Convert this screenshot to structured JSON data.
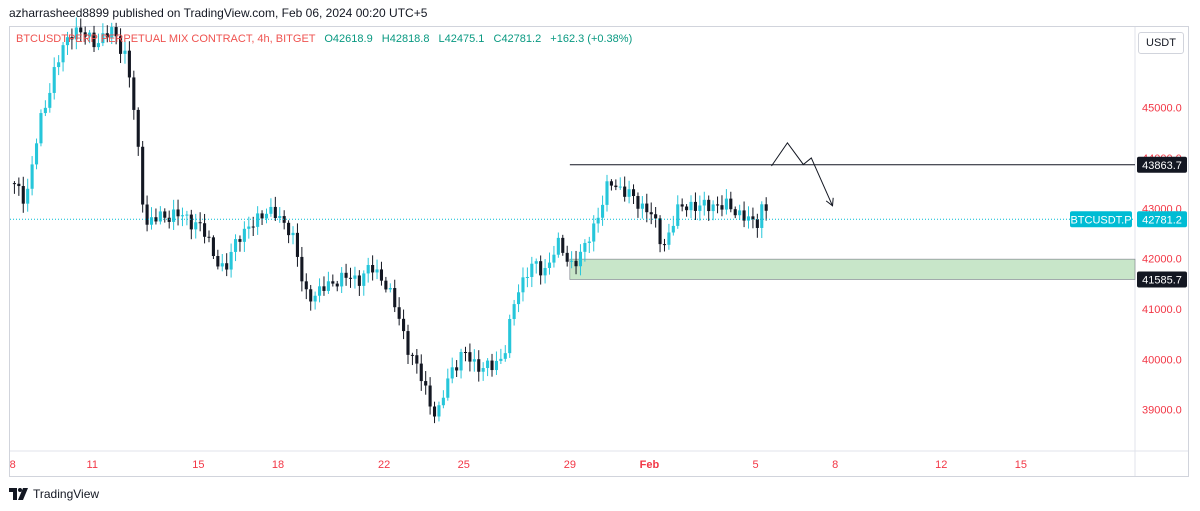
{
  "header": {
    "publisher_line": "azharrasheed8899 published on TradingView.com, Feb 06, 2024 00:20 UTC+5"
  },
  "legend": {
    "symbol": "BTCUSDTPERP PERPETUAL MIX CONTRACT, 4h, BITGET",
    "open": "O42618.9",
    "high": "H42818.8",
    "low": "L42475.1",
    "close": "C42781.2",
    "change": "+162.3 (+0.38%)"
  },
  "currency_label": "USDT",
  "brand": "TradingView",
  "colors": {
    "up": "#26c6da",
    "down": "#131722",
    "zone": "#c8e6c9",
    "price_line": "#00bcd4",
    "axis_text": "#f23645"
  },
  "chart_data": {
    "type": "candlestick",
    "title": "BTCUSDTPERP PERPETUAL MIX CONTRACT, 4h, BITGET",
    "y_ticks": [
      39000,
      40000,
      41000,
      42000,
      43000,
      44000,
      45000
    ],
    "y_tick_labels": [
      "39000.0",
      "40000.0",
      "41000.0",
      "42000.0",
      "43000.0",
      "44000.0",
      "45000.0"
    ],
    "ylim": [
      38200,
      46600
    ],
    "x_labels": [
      {
        "label": "8",
        "day": 8
      },
      {
        "label": "11",
        "day": 11
      },
      {
        "label": "15",
        "day": 15
      },
      {
        "label": "18",
        "day": 18
      },
      {
        "label": "22",
        "day": 22
      },
      {
        "label": "25",
        "day": 25
      },
      {
        "label": "29",
        "day": 29
      },
      {
        "label": "Feb",
        "day": 32
      },
      {
        "label": "5",
        "day": 36
      },
      {
        "label": "8",
        "day": 39
      },
      {
        "label": "12",
        "day": 43
      },
      {
        "label": "15",
        "day": 46
      }
    ],
    "xlim": [
      7.9,
      50.3
    ],
    "last_price": 42781.2,
    "last_price_label": "BTCUSDT.P",
    "last_price_text": "42781.2",
    "resistance": 43863.7,
    "resistance_text": "43863.7",
    "support_zone": [
      41585.7,
      41990
    ],
    "support_text": "41585.7",
    "level_lines_start_day": 29,
    "projection_path": [
      {
        "day": 36.6,
        "price": 43840
      },
      {
        "day": 37.2,
        "price": 44300
      },
      {
        "day": 37.8,
        "price": 43870
      },
      {
        "day": 38.1,
        "price": 44000
      },
      {
        "day": 38.9,
        "price": 43050
      }
    ],
    "key_points": [
      {
        "day": 7.9,
        "price": 43500
      },
      {
        "day": 8.5,
        "price": 43200
      },
      {
        "day": 9.0,
        "price": 44600
      },
      {
        "day": 9.6,
        "price": 45800
      },
      {
        "day": 10.3,
        "price": 46600
      },
      {
        "day": 11.0,
        "price": 46300
      },
      {
        "day": 11.8,
        "price": 46500
      },
      {
        "day": 12.3,
        "price": 46000
      },
      {
        "day": 12.6,
        "price": 44800
      },
      {
        "day": 13.0,
        "price": 42700
      },
      {
        "day": 14.0,
        "price": 42900
      },
      {
        "day": 15.0,
        "price": 42700
      },
      {
        "day": 15.5,
        "price": 42200
      },
      {
        "day": 16.0,
        "price": 41700
      },
      {
        "day": 16.5,
        "price": 42500
      },
      {
        "day": 17.0,
        "price": 42600
      },
      {
        "day": 17.5,
        "price": 43000
      },
      {
        "day": 18.0,
        "price": 42800
      },
      {
        "day": 18.5,
        "price": 42600
      },
      {
        "day": 19.0,
        "price": 41300
      },
      {
        "day": 19.5,
        "price": 41300
      },
      {
        "day": 20.2,
        "price": 41600
      },
      {
        "day": 21.0,
        "price": 41600
      },
      {
        "day": 21.5,
        "price": 41800
      },
      {
        "day": 22.0,
        "price": 41600
      },
      {
        "day": 22.5,
        "price": 40900
      },
      {
        "day": 23.0,
        "price": 40100
      },
      {
        "day": 23.5,
        "price": 39500
      },
      {
        "day": 24.0,
        "price": 38800
      },
      {
        "day": 24.5,
        "price": 39800
      },
      {
        "day": 25.0,
        "price": 40100
      },
      {
        "day": 25.5,
        "price": 39900
      },
      {
        "day": 26.0,
        "price": 39800
      },
      {
        "day": 26.5,
        "price": 40100
      },
      {
        "day": 27.0,
        "price": 41300
      },
      {
        "day": 27.5,
        "price": 41900
      },
      {
        "day": 28.0,
        "price": 41700
      },
      {
        "day": 28.5,
        "price": 42300
      },
      {
        "day": 29.0,
        "price": 41900
      },
      {
        "day": 29.5,
        "price": 42100
      },
      {
        "day": 30.0,
        "price": 42800
      },
      {
        "day": 30.5,
        "price": 43500
      },
      {
        "day": 31.0,
        "price": 43400
      },
      {
        "day": 31.5,
        "price": 43100
      },
      {
        "day": 32.0,
        "price": 43000
      },
      {
        "day": 32.5,
        "price": 42200
      },
      {
        "day": 33.0,
        "price": 42900
      },
      {
        "day": 33.5,
        "price": 43100
      },
      {
        "day": 34.0,
        "price": 43000
      },
      {
        "day": 34.5,
        "price": 43100
      },
      {
        "day": 35.0,
        "price": 43000
      },
      {
        "day": 35.5,
        "price": 42900
      },
      {
        "day": 36.0,
        "price": 42600
      },
      {
        "day": 36.3,
        "price": 43200
      },
      {
        "day": 36.5,
        "price": 42780
      }
    ],
    "grid": false
  }
}
